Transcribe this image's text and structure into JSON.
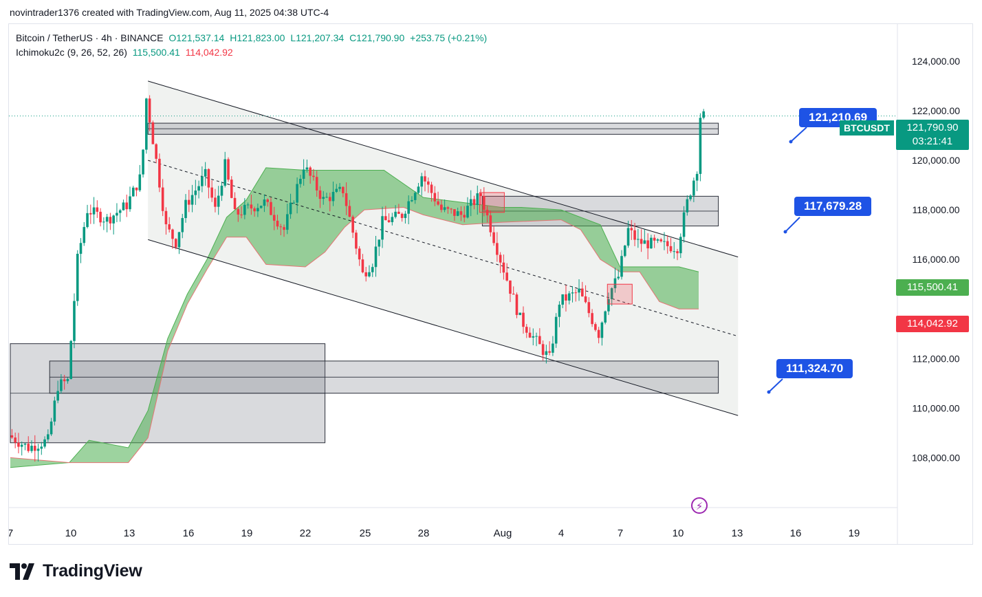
{
  "credit": "novintrader1376 created with TradingView.com, Aug 11, 2025 04:38 UTC-4",
  "legend": {
    "symbol": "Bitcoin / TetherUS · 4h · BINANCE",
    "o": "O121,537.14",
    "h": "H121,823.00",
    "l": "L121,207.34",
    "c": "C121,790.90",
    "change": "+253.75 (+0.21%)",
    "indicator": "Ichimoku2c (9, 26, 52, 26)",
    "ind_v1": "115,500.41",
    "ind_v2": "114,042.92"
  },
  "badges": [
    "121,210.69",
    "117,679.28",
    "111,324.70"
  ],
  "axis_tags": {
    "symbol": "BTCUSDT",
    "price": "121,790.90",
    "countdown": "03:21:41",
    "span_a": "115,500.41",
    "span_b": "114,042.92"
  },
  "brand": "TradingView",
  "colors": {
    "up": "#089981",
    "down": "#f23645",
    "cloud": "#4caf50",
    "badge": "#1e53e5"
  },
  "chart_data": {
    "type": "candlestick",
    "title": "Bitcoin / TetherUS · 4h · BINANCE",
    "x_ticks": [
      "7",
      "10",
      "13",
      "16",
      "19",
      "22",
      "25",
      "28",
      "Aug",
      "4",
      "7",
      "10",
      "13",
      "16",
      "19"
    ],
    "y_ticks": [
      "124,000.00",
      "122,000.00",
      "120,000.00",
      "118,000.00",
      "116,000.00",
      "112,000.00",
      "110,000.00",
      "108,000.00"
    ],
    "ylim": [
      106900,
      125500
    ],
    "x_range_days": [
      "2025-07-07",
      "2025-07-21"
    ],
    "price_points": [
      [
        "2025-07-07",
        108900
      ],
      [
        "2025-07-08",
        108400
      ],
      [
        "2025-07-09",
        108700
      ],
      [
        "2025-07-09T12",
        110900
      ],
      [
        "2025-07-10",
        111100
      ],
      [
        "2025-07-10T12",
        116000
      ],
      [
        "2025-07-11",
        118000
      ],
      [
        "2025-07-12",
        117600
      ],
      [
        "2025-07-13",
        118200
      ],
      [
        "2025-07-13T18",
        119400
      ],
      [
        "2025-07-14",
        122500
      ],
      [
        "2025-07-14T12",
        120000
      ],
      [
        "2025-07-15",
        117300
      ],
      [
        "2025-07-15T12",
        116700
      ],
      [
        "2025-07-16",
        118200
      ],
      [
        "2025-07-17",
        119400
      ],
      [
        "2025-07-17T12",
        118000
      ],
      [
        "2025-07-18",
        119800
      ],
      [
        "2025-07-18T12",
        117800
      ],
      [
        "2025-07-19",
        118000
      ],
      [
        "2025-07-20",
        118300
      ],
      [
        "2025-07-21",
        117200
      ],
      [
        "2025-07-22",
        119800
      ],
      [
        "2025-07-23",
        118400
      ],
      [
        "2025-07-24",
        118800
      ],
      [
        "2025-07-25",
        115400
      ],
      [
        "2025-07-25T12",
        115900
      ],
      [
        "2025-07-26",
        117500
      ],
      [
        "2025-07-27",
        117800
      ],
      [
        "2025-07-28",
        119400
      ],
      [
        "2025-07-29",
        118000
      ],
      [
        "2025-07-30",
        117800
      ],
      [
        "2025-07-31",
        118600
      ],
      [
        "2025-08-01",
        116000
      ],
      [
        "2025-08-02",
        113600
      ],
      [
        "2025-08-03",
        112500
      ],
      [
        "2025-08-03T12",
        112000
      ],
      [
        "2025-08-04",
        114300
      ],
      [
        "2025-08-05",
        114700
      ],
      [
        "2025-08-06",
        113000
      ],
      [
        "2025-08-06T12",
        114600
      ],
      [
        "2025-08-07",
        115300
      ],
      [
        "2025-08-07T12",
        117200
      ],
      [
        "2025-08-08",
        116700
      ],
      [
        "2025-08-09",
        116600
      ],
      [
        "2025-08-10",
        116500
      ],
      [
        "2025-08-10T12",
        118300
      ],
      [
        "2025-08-11",
        119700
      ],
      [
        "2025-08-11T04",
        121790
      ]
    ],
    "cloud_span_a": [
      [
        "2025-07-07",
        107600
      ],
      [
        "2025-07-10",
        107800
      ],
      [
        "2025-07-11",
        108700
      ],
      [
        "2025-07-13",
        108400
      ],
      [
        "2025-07-14",
        109900
      ],
      [
        "2025-07-15",
        112800
      ],
      [
        "2025-07-16",
        114600
      ],
      [
        "2025-07-17",
        116000
      ],
      [
        "2025-07-18",
        117700
      ],
      [
        "2025-07-19",
        118400
      ],
      [
        "2025-07-20",
        119700
      ],
      [
        "2025-07-22",
        119600
      ],
      [
        "2025-07-24",
        119600
      ],
      [
        "2025-07-26",
        119600
      ],
      [
        "2025-07-28",
        118500
      ],
      [
        "2025-07-30",
        118300
      ],
      [
        "2025-08-01",
        118100
      ],
      [
        "2025-08-02",
        118100
      ],
      [
        "2025-08-04",
        118000
      ],
      [
        "2025-08-06",
        117400
      ],
      [
        "2025-08-07",
        115700
      ],
      [
        "2025-08-08",
        115700
      ],
      [
        "2025-08-10",
        115700
      ],
      [
        "2025-08-11",
        115500
      ]
    ],
    "cloud_span_b": [
      [
        "2025-07-07",
        108000
      ],
      [
        "2025-07-10",
        107800
      ],
      [
        "2025-07-13",
        107800
      ],
      [
        "2025-07-14",
        108800
      ],
      [
        "2025-07-15",
        112300
      ],
      [
        "2025-07-16",
        114200
      ],
      [
        "2025-07-17",
        115600
      ],
      [
        "2025-07-18",
        116900
      ],
      [
        "2025-07-19",
        116900
      ],
      [
        "2025-07-20",
        115800
      ],
      [
        "2025-07-22",
        115700
      ],
      [
        "2025-07-23",
        116300
      ],
      [
        "2025-07-24",
        117300
      ],
      [
        "2025-07-25",
        118000
      ],
      [
        "2025-07-27",
        118100
      ],
      [
        "2025-07-28",
        117800
      ],
      [
        "2025-07-30",
        117400
      ],
      [
        "2025-08-01",
        117500
      ],
      [
        "2025-08-04",
        117600
      ],
      [
        "2025-08-05",
        117200
      ],
      [
        "2025-08-06",
        116000
      ],
      [
        "2025-08-07",
        115500
      ],
      [
        "2025-08-08",
        115500
      ],
      [
        "2025-08-09",
        114300
      ],
      [
        "2025-08-10",
        114000
      ],
      [
        "2025-08-11",
        114000
      ]
    ],
    "zones": [
      {
        "from_day": "2025-07-14",
        "to_day": "2025-08-12",
        "top": 121500,
        "bottom": 121050
      },
      {
        "from_day": "2025-07-31",
        "to_day": "2025-08-12",
        "top": 118550,
        "bottom": 117350
      },
      {
        "from_day": "2025-07-07",
        "to_day": "2025-07-23",
        "top": 112600,
        "bottom": 108600
      },
      {
        "from_day": "2025-07-09",
        "to_day": "2025-08-12",
        "top": 111900,
        "bottom": 110600
      }
    ],
    "channel": {
      "upper": [
        [
          "2025-07-14",
          123200
        ],
        [
          "2025-08-13",
          116100
        ]
      ],
      "lower": [
        [
          "2025-07-14",
          116800
        ],
        [
          "2025-08-13",
          109700
        ]
      ],
      "mid": [
        [
          "2025-07-14",
          120000
        ],
        [
          "2025-08-13",
          112900
        ]
      ]
    }
  }
}
